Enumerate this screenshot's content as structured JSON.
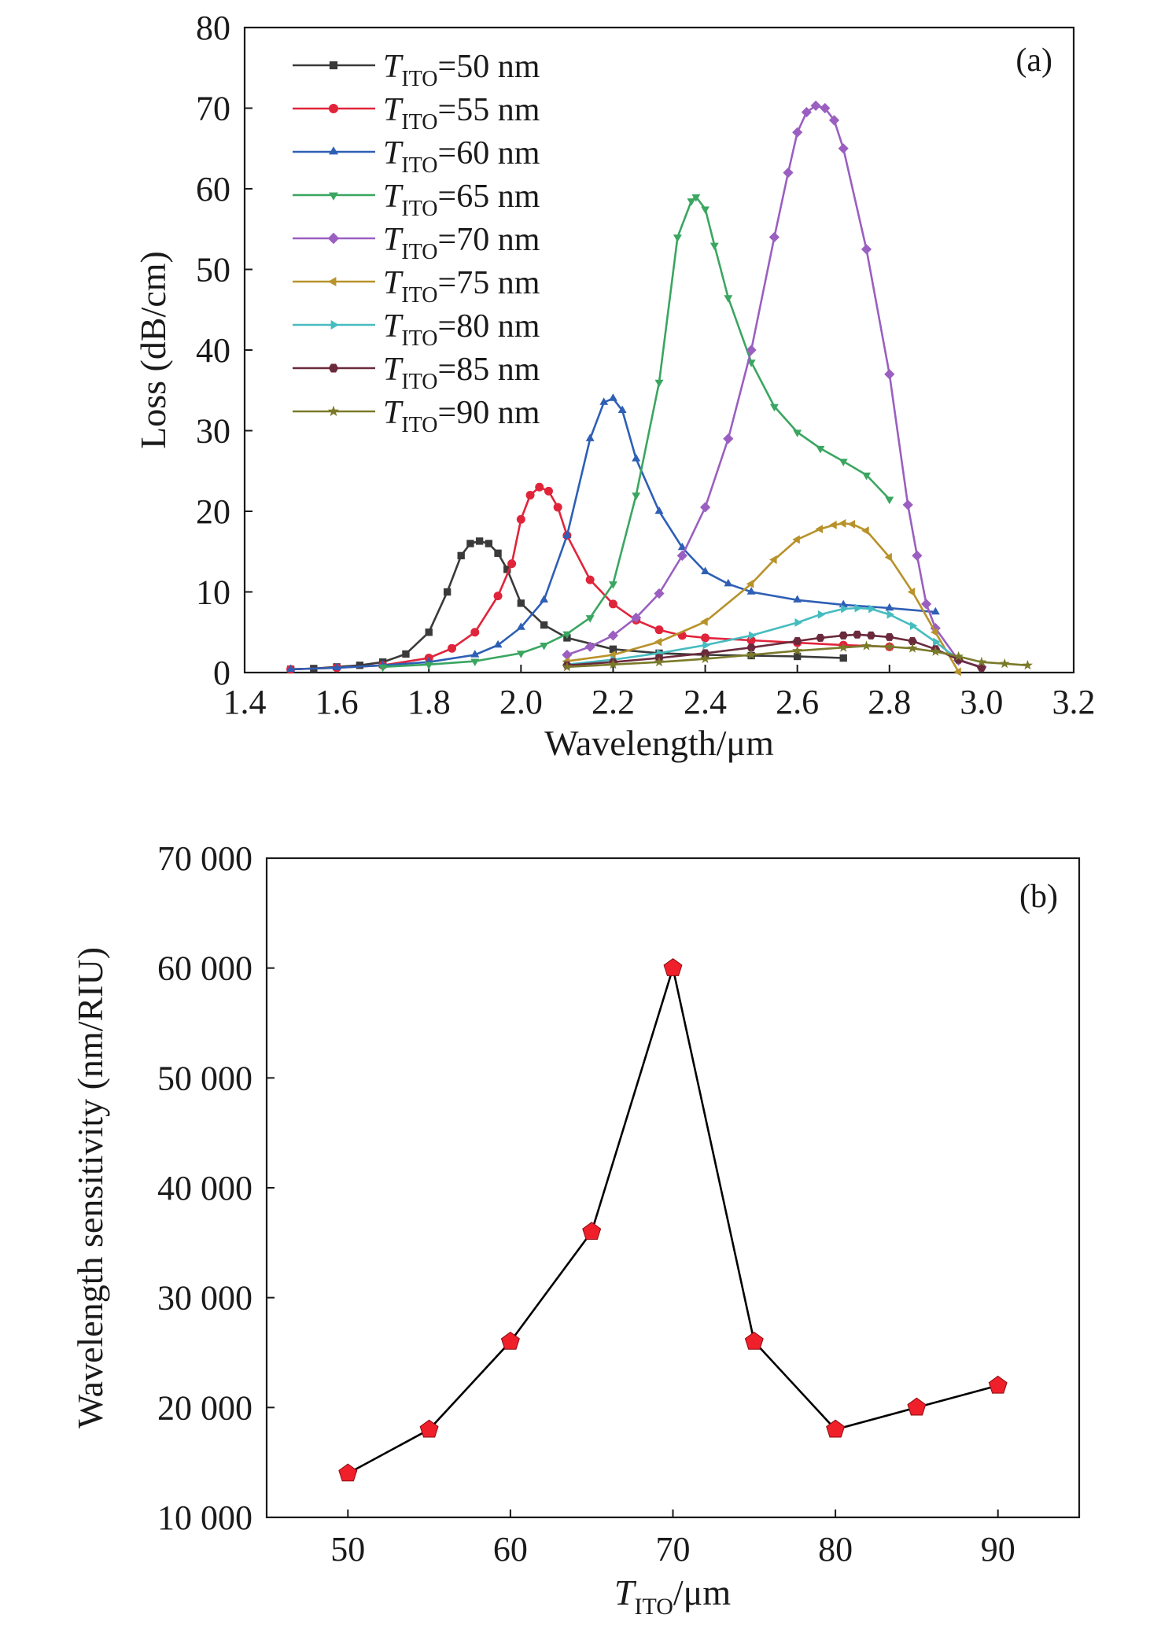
{
  "chart_data": [
    {
      "type": "line",
      "panel_label": "(a)",
      "xlabel": "Wavelength/μm",
      "ylabel": "Loss (dB/cm)",
      "xlim": [
        1.4,
        3.2
      ],
      "ylim": [
        0,
        80
      ],
      "xticks": [
        "1.4",
        "1.6",
        "1.8",
        "2.0",
        "2.2",
        "2.4",
        "2.6",
        "2.8",
        "3.0",
        "3.2"
      ],
      "yticks": [
        "0",
        "10",
        "20",
        "30",
        "40",
        "50",
        "60",
        "70",
        "80"
      ],
      "legend_position": "top-left",
      "series": [
        {
          "name_var": "T",
          "name_sub": "ITO",
          "name_rest": "=50 nm",
          "color": "#3a3a3a",
          "marker": "square",
          "points": [
            [
              1.5,
              0.4
            ],
            [
              1.55,
              0.5
            ],
            [
              1.6,
              0.7
            ],
            [
              1.65,
              0.9
            ],
            [
              1.7,
              1.3
            ],
            [
              1.75,
              2.3
            ],
            [
              1.8,
              5.0
            ],
            [
              1.84,
              10.0
            ],
            [
              1.87,
              14.5
            ],
            [
              1.89,
              16.0
            ],
            [
              1.91,
              16.3
            ],
            [
              1.93,
              16.0
            ],
            [
              1.95,
              14.8
            ],
            [
              1.97,
              12.8
            ],
            [
              2.0,
              8.6
            ],
            [
              2.05,
              5.9
            ],
            [
              2.1,
              4.3
            ],
            [
              2.2,
              2.9
            ],
            [
              2.3,
              2.4
            ],
            [
              2.4,
              2.2
            ],
            [
              2.5,
              2.1
            ],
            [
              2.6,
              2.0
            ],
            [
              2.7,
              1.8
            ]
          ]
        },
        {
          "name_var": "T",
          "name_sub": "ITO",
          "name_rest": "=55 nm",
          "color": "#e0243a",
          "marker": "circle",
          "points": [
            [
              1.5,
              0.4
            ],
            [
              1.6,
              0.6
            ],
            [
              1.7,
              0.9
            ],
            [
              1.8,
              1.8
            ],
            [
              1.85,
              3.0
            ],
            [
              1.9,
              5.0
            ],
            [
              1.95,
              9.5
            ],
            [
              1.98,
              13.5
            ],
            [
              2.0,
              19.0
            ],
            [
              2.02,
              22.0
            ],
            [
              2.04,
              23.0
            ],
            [
              2.06,
              22.5
            ],
            [
              2.08,
              20.5
            ],
            [
              2.1,
              17.0
            ],
            [
              2.15,
              11.5
            ],
            [
              2.2,
              8.5
            ],
            [
              2.25,
              6.5
            ],
            [
              2.3,
              5.3
            ],
            [
              2.35,
              4.6
            ],
            [
              2.4,
              4.3
            ],
            [
              2.5,
              4.0
            ],
            [
              2.6,
              3.7
            ],
            [
              2.7,
              3.4
            ],
            [
              2.8,
              3.2
            ]
          ]
        },
        {
          "name_var": "T",
          "name_sub": "ITO",
          "name_rest": "=60 nm",
          "color": "#2e5fb5",
          "marker": "triangle-up",
          "points": [
            [
              1.5,
              0.4
            ],
            [
              1.6,
              0.6
            ],
            [
              1.7,
              0.9
            ],
            [
              1.8,
              1.3
            ],
            [
              1.9,
              2.2
            ],
            [
              1.95,
              3.4
            ],
            [
              2.0,
              5.6
            ],
            [
              2.05,
              9.0
            ],
            [
              2.1,
              17.0
            ],
            [
              2.15,
              29.0
            ],
            [
              2.18,
              33.5
            ],
            [
              2.2,
              34.0
            ],
            [
              2.22,
              32.5
            ],
            [
              2.25,
              26.5
            ],
            [
              2.3,
              20.0
            ],
            [
              2.35,
              15.5
            ],
            [
              2.4,
              12.5
            ],
            [
              2.45,
              11.0
            ],
            [
              2.5,
              10.0
            ],
            [
              2.6,
              9.0
            ],
            [
              2.7,
              8.4
            ],
            [
              2.8,
              8.0
            ],
            [
              2.9,
              7.5
            ]
          ]
        },
        {
          "name_var": "T",
          "name_sub": "ITO",
          "name_rest": "=65 nm",
          "color": "#3aa660",
          "marker": "triangle-down",
          "points": [
            [
              1.7,
              0.7
            ],
            [
              1.8,
              1.0
            ],
            [
              1.9,
              1.4
            ],
            [
              2.0,
              2.4
            ],
            [
              2.05,
              3.4
            ],
            [
              2.1,
              4.8
            ],
            [
              2.15,
              6.8
            ],
            [
              2.2,
              11.0
            ],
            [
              2.25,
              22.0
            ],
            [
              2.3,
              36.0
            ],
            [
              2.34,
              54.0
            ],
            [
              2.37,
              58.5
            ],
            [
              2.38,
              59.0
            ],
            [
              2.4,
              57.5
            ],
            [
              2.42,
              53.0
            ],
            [
              2.45,
              46.5
            ],
            [
              2.5,
              38.5
            ],
            [
              2.55,
              33.0
            ],
            [
              2.6,
              29.8
            ],
            [
              2.65,
              27.8
            ],
            [
              2.7,
              26.2
            ],
            [
              2.75,
              24.5
            ],
            [
              2.8,
              21.5
            ]
          ]
        },
        {
          "name_var": "T",
          "name_sub": "ITO",
          "name_rest": "=70 nm",
          "color": "#9a5fc0",
          "marker": "diamond",
          "points": [
            [
              2.1,
              2.2
            ],
            [
              2.15,
              3.2
            ],
            [
              2.2,
              4.6
            ],
            [
              2.25,
              6.8
            ],
            [
              2.3,
              9.8
            ],
            [
              2.35,
              14.5
            ],
            [
              2.4,
              20.5
            ],
            [
              2.45,
              29.0
            ],
            [
              2.5,
              40.0
            ],
            [
              2.55,
              54.0
            ],
            [
              2.58,
              62.0
            ],
            [
              2.6,
              67.0
            ],
            [
              2.62,
              69.5
            ],
            [
              2.64,
              70.3
            ],
            [
              2.66,
              70.0
            ],
            [
              2.68,
              68.5
            ],
            [
              2.7,
              65.0
            ],
            [
              2.75,
              52.5
            ],
            [
              2.8,
              37.0
            ],
            [
              2.84,
              20.8
            ],
            [
              2.86,
              14.5
            ],
            [
              2.88,
              8.5
            ],
            [
              2.9,
              5.5
            ],
            [
              2.95,
              1.5
            ],
            [
              3.0,
              0.7
            ]
          ]
        },
        {
          "name_var": "T",
          "name_sub": "ITO",
          "name_rest": "=75 nm",
          "color": "#b8922a",
          "marker": "triangle-left",
          "points": [
            [
              2.1,
              1.4
            ],
            [
              2.2,
              2.2
            ],
            [
              2.3,
              3.8
            ],
            [
              2.4,
              6.3
            ],
            [
              2.5,
              11.0
            ],
            [
              2.55,
              14.0
            ],
            [
              2.6,
              16.5
            ],
            [
              2.65,
              17.8
            ],
            [
              2.68,
              18.3
            ],
            [
              2.7,
              18.5
            ],
            [
              2.72,
              18.4
            ],
            [
              2.75,
              17.6
            ],
            [
              2.8,
              14.3
            ],
            [
              2.85,
              10.0
            ],
            [
              2.9,
              5.0
            ],
            [
              2.95,
              0.1
            ]
          ]
        },
        {
          "name_var": "T",
          "name_sub": "ITO",
          "name_rest": "=80 nm",
          "color": "#45bcc0",
          "marker": "triangle-right",
          "points": [
            [
              2.1,
              1.0
            ],
            [
              2.2,
              1.6
            ],
            [
              2.3,
              2.4
            ],
            [
              2.4,
              3.4
            ],
            [
              2.5,
              4.6
            ],
            [
              2.6,
              6.2
            ],
            [
              2.65,
              7.2
            ],
            [
              2.7,
              7.9
            ],
            [
              2.73,
              8.0
            ],
            [
              2.76,
              7.9
            ],
            [
              2.8,
              7.2
            ],
            [
              2.85,
              5.8
            ],
            [
              2.9,
              3.8
            ],
            [
              2.95,
              1.6
            ]
          ]
        },
        {
          "name_var": "T",
          "name_sub": "ITO",
          "name_rest": "=85 nm",
          "color": "#6b2a3c",
          "marker": "hexagon",
          "points": [
            [
              2.1,
              0.9
            ],
            [
              2.2,
              1.3
            ],
            [
              2.3,
              1.8
            ],
            [
              2.4,
              2.4
            ],
            [
              2.5,
              3.1
            ],
            [
              2.6,
              3.9
            ],
            [
              2.65,
              4.3
            ],
            [
              2.7,
              4.6
            ],
            [
              2.73,
              4.7
            ],
            [
              2.76,
              4.6
            ],
            [
              2.8,
              4.4
            ],
            [
              2.85,
              3.9
            ],
            [
              2.9,
              2.9
            ],
            [
              2.95,
              1.6
            ],
            [
              3.0,
              0.6
            ]
          ]
        },
        {
          "name_var": "T",
          "name_sub": "ITO",
          "name_rest": "=90 nm",
          "color": "#7a7a2a",
          "marker": "star",
          "points": [
            [
              2.1,
              0.7
            ],
            [
              2.2,
              1.0
            ],
            [
              2.3,
              1.3
            ],
            [
              2.4,
              1.7
            ],
            [
              2.5,
              2.2
            ],
            [
              2.6,
              2.7
            ],
            [
              2.7,
              3.1
            ],
            [
              2.75,
              3.3
            ],
            [
              2.8,
              3.2
            ],
            [
              2.85,
              3.0
            ],
            [
              2.9,
              2.6
            ],
            [
              2.95,
              2.0
            ],
            [
              3.0,
              1.3
            ],
            [
              3.05,
              1.1
            ],
            [
              3.1,
              0.9
            ]
          ]
        }
      ]
    },
    {
      "type": "line",
      "panel_label": "(b)",
      "xlabel_var": "T",
      "xlabel_sub": "ITO",
      "xlabel_rest": "/μm",
      "ylabel": "Wavelength sensitivity (nm/RIU)",
      "xlim": [
        45,
        95
      ],
      "ylim": [
        10000,
        70000
      ],
      "xticks": [
        {
          "v": 50,
          "label": "50"
        },
        {
          "v": 60,
          "label": "60"
        },
        {
          "v": 70,
          "label": "70"
        },
        {
          "v": 80,
          "label": "80"
        },
        {
          "v": 90,
          "label": "90"
        }
      ],
      "yticks": [
        {
          "v": 10000,
          "label": "10 000"
        },
        {
          "v": 20000,
          "label": "20 000"
        },
        {
          "v": 30000,
          "label": "30 000"
        },
        {
          "v": 40000,
          "label": "40 000"
        },
        {
          "v": 50000,
          "label": "50 000"
        },
        {
          "v": 60000,
          "label": "60 000"
        },
        {
          "v": 70000,
          "label": "70 000"
        }
      ],
      "line_color": "#000000",
      "marker_color": "#f0202a",
      "marker": "pentagon",
      "x": [
        50,
        55,
        60,
        65,
        70,
        75,
        80,
        85,
        90
      ],
      "y": [
        14000,
        18000,
        26000,
        36000,
        60000,
        26000,
        18000,
        20000,
        22000
      ]
    }
  ]
}
